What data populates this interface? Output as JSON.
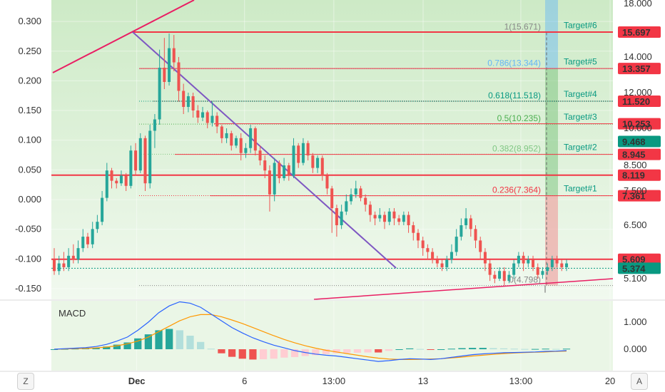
{
  "chart_data": {
    "type": "candlestick",
    "main_pane": {
      "left_axis_ticks": [
        "0.300",
        "0.250",
        "0.200",
        "0.150",
        "0.100",
        "0.050",
        "0.000",
        "-0.050",
        "-0.100",
        "-0.150"
      ],
      "right_axis_ticks": [
        "18.000",
        "14.000",
        "12.000",
        "10.000",
        "8.500",
        "7.500",
        "6.500",
        "5.100"
      ],
      "left_ylim": [
        -0.15,
        0.3
      ],
      "right_ylim": [
        4.5,
        16.5
      ],
      "fib_levels": [
        {
          "label": "1(15.671)",
          "value": 15.671,
          "color": "#888888"
        },
        {
          "label": "0.786(13.344)",
          "value": 13.344,
          "color": "#64b5f6"
        },
        {
          "label": "0.618(11.518)",
          "value": 11.518,
          "color": "#089981"
        },
        {
          "label": "0.5(10.235)",
          "value": 10.235,
          "color": "#4caf50"
        },
        {
          "label": "0.382(8.952)",
          "value": 8.952,
          "color": "#81c784"
        },
        {
          "label": "0.236(7.364)",
          "value": 7.364,
          "color": "#f23645"
        },
        {
          "label": "0(4.798)",
          "value": 4.798,
          "color": "#888888"
        }
      ],
      "targets": [
        {
          "label": "Target#6",
          "value": 15.671
        },
        {
          "label": "Target#5",
          "value": 13.344
        },
        {
          "label": "Target#4",
          "value": 11.518
        },
        {
          "label": "Target#3",
          "value": 10.235
        },
        {
          "label": "Target#2",
          "value": 8.952
        },
        {
          "label": "Target#1",
          "value": 7.364
        }
      ],
      "price_tags": [
        {
          "text": "15.697",
          "value": 15.697,
          "color": "#f23645"
        },
        {
          "text": "13.357",
          "value": 13.357,
          "color": "#f23645"
        },
        {
          "text": "11.520",
          "value": 11.52,
          "color": "#f23645"
        },
        {
          "text": "10.253",
          "value": 10.253,
          "color": "#f23645"
        },
        {
          "text": "9.468",
          "value": 9.468,
          "color": "#089981"
        },
        {
          "text": "8.945",
          "value": 8.945,
          "color": "#f23645"
        },
        {
          "text": "8.119",
          "value": 8.119,
          "color": "#f23645"
        },
        {
          "text": "7.361",
          "value": 7.361,
          "color": "#f23645"
        },
        {
          "text": "5.609",
          "value": 5.609,
          "color": "#f23645"
        },
        {
          "text": "5.374",
          "value": 5.374,
          "color": "#089981"
        }
      ],
      "horizontal_lines": [
        15.697,
        13.357,
        11.52,
        10.253,
        8.945,
        8.119,
        7.361,
        5.609,
        5.374
      ],
      "candles": [
        [
          5.6,
          5.3,
          5.9,
          5.2
        ],
        [
          5.3,
          5.5,
          5.7,
          5.2
        ],
        [
          5.5,
          5.4,
          5.8,
          5.3
        ],
        [
          5.4,
          5.7,
          5.9,
          5.3
        ],
        [
          5.7,
          5.6,
          6.0,
          5.5
        ],
        [
          5.6,
          5.9,
          6.1,
          5.5
        ],
        [
          5.9,
          6.2,
          6.4,
          5.8
        ],
        [
          6.2,
          6.0,
          6.3,
          5.9
        ],
        [
          6.0,
          6.4,
          6.6,
          5.9
        ],
        [
          6.4,
          6.6,
          6.8,
          6.3
        ],
        [
          6.6,
          7.3,
          7.5,
          6.5
        ],
        [
          7.3,
          8.3,
          8.6,
          7.2
        ],
        [
          8.3,
          7.9,
          8.4,
          7.6
        ],
        [
          7.9,
          7.8,
          8.0,
          7.6
        ],
        [
          7.8,
          8.1,
          8.3,
          7.7
        ],
        [
          8.1,
          7.7,
          8.2,
          7.5
        ],
        [
          7.7,
          9.1,
          9.3,
          7.6
        ],
        [
          9.1,
          8.3,
          9.4,
          8.1
        ],
        [
          8.3,
          9.6,
          9.8,
          8.2
        ],
        [
          9.6,
          7.8,
          9.7,
          7.5
        ],
        [
          7.8,
          9.9,
          10.2,
          7.6
        ],
        [
          9.9,
          10.5,
          10.8,
          9.2
        ],
        [
          10.5,
          13.4,
          14.5,
          10.2
        ],
        [
          13.4,
          12.6,
          15.3,
          12.2
        ],
        [
          12.6,
          14.6,
          15.6,
          12.4
        ],
        [
          14.6,
          13.7,
          15.5,
          13.2
        ],
        [
          13.7,
          12.1,
          14.0,
          11.5
        ],
        [
          12.1,
          11.2,
          12.5,
          10.8
        ],
        [
          11.2,
          11.8,
          12.0,
          10.9
        ],
        [
          11.8,
          11.0,
          12.0,
          10.6
        ],
        [
          11.0,
          10.6,
          11.3,
          10.3
        ],
        [
          10.6,
          10.9,
          11.2,
          10.4
        ],
        [
          10.9,
          10.3,
          11.0,
          10.0
        ],
        [
          10.3,
          10.7,
          11.5,
          10.1
        ],
        [
          10.7,
          10.1,
          10.9,
          9.8
        ],
        [
          10.1,
          9.6,
          10.2,
          9.4
        ],
        [
          9.6,
          9.8,
          10.0,
          9.4
        ],
        [
          9.8,
          9.3,
          9.9,
          9.1
        ],
        [
          9.3,
          9.6,
          9.7,
          9.2
        ],
        [
          9.6,
          9.0,
          9.8,
          8.7
        ],
        [
          9.0,
          9.2,
          9.4,
          8.8
        ],
        [
          9.2,
          10.0,
          10.2,
          9.0
        ],
        [
          10.0,
          9.1,
          10.1,
          8.9
        ],
        [
          9.1,
          8.7,
          9.3,
          8.5
        ],
        [
          8.7,
          8.3,
          8.9,
          8.0
        ],
        [
          8.3,
          7.4,
          8.5,
          6.9
        ],
        [
          7.4,
          8.6,
          8.8,
          7.2
        ],
        [
          8.6,
          8.0,
          8.7,
          7.8
        ],
        [
          8.0,
          8.5,
          8.8,
          7.9
        ],
        [
          8.5,
          8.1,
          8.6,
          7.9
        ],
        [
          8.1,
          9.3,
          9.6,
          8.0
        ],
        [
          9.3,
          8.6,
          9.4,
          8.4
        ],
        [
          8.6,
          9.4,
          9.6,
          8.5
        ],
        [
          9.4,
          8.9,
          9.5,
          8.7
        ],
        [
          8.9,
          8.4,
          9.0,
          8.2
        ],
        [
          8.4,
          8.8,
          8.9,
          8.2
        ],
        [
          8.8,
          8.1,
          8.9,
          7.9
        ],
        [
          8.1,
          7.6,
          8.2,
          7.4
        ],
        [
          7.6,
          7.0,
          7.7,
          6.3
        ],
        [
          7.0,
          6.5,
          7.1,
          6.2
        ],
        [
          6.5,
          6.9,
          7.1,
          6.4
        ],
        [
          6.9,
          7.2,
          7.4,
          6.8
        ],
        [
          7.2,
          7.4,
          7.6,
          7.1
        ],
        [
          7.4,
          7.6,
          7.9,
          7.3
        ],
        [
          7.6,
          7.3,
          7.7,
          7.2
        ],
        [
          7.3,
          7.1,
          7.4,
          6.9
        ],
        [
          7.1,
          6.8,
          7.2,
          6.6
        ],
        [
          6.8,
          6.7,
          6.9,
          6.5
        ],
        [
          6.7,
          6.8,
          7.0,
          6.6
        ],
        [
          6.8,
          6.6,
          6.9,
          6.4
        ],
        [
          6.6,
          6.9,
          7.0,
          6.5
        ],
        [
          6.9,
          6.7,
          7.0,
          6.5
        ],
        [
          6.7,
          6.6,
          6.8,
          6.5
        ],
        [
          6.6,
          6.8,
          6.9,
          6.5
        ],
        [
          6.8,
          6.5,
          6.9,
          6.3
        ],
        [
          6.5,
          6.3,
          6.6,
          6.1
        ],
        [
          6.3,
          6.1,
          6.4,
          5.9
        ],
        [
          6.1,
          5.9,
          6.2,
          5.7
        ],
        [
          5.9,
          5.8,
          6.0,
          5.6
        ],
        [
          5.8,
          5.6,
          5.9,
          5.5
        ],
        [
          5.6,
          5.5,
          5.7,
          5.4
        ],
        [
          5.5,
          5.4,
          5.6,
          5.3
        ],
        [
          5.4,
          5.6,
          5.7,
          5.3
        ],
        [
          5.6,
          5.8,
          6.0,
          5.5
        ],
        [
          5.8,
          6.2,
          6.4,
          5.7
        ],
        [
          6.2,
          6.5,
          6.7,
          6.1
        ],
        [
          6.5,
          6.7,
          7.0,
          6.4
        ],
        [
          6.7,
          6.4,
          6.8,
          6.2
        ],
        [
          6.4,
          6.1,
          6.5,
          5.9
        ],
        [
          6.1,
          5.8,
          6.2,
          5.6
        ],
        [
          5.8,
          5.5,
          5.9,
          5.3
        ],
        [
          5.5,
          5.2,
          5.6,
          5.0
        ],
        [
          5.2,
          5.1,
          5.3,
          4.9
        ],
        [
          5.1,
          5.3,
          5.4,
          5.0
        ],
        [
          5.3,
          5.0,
          5.4,
          4.8
        ],
        [
          5.0,
          5.2,
          5.3,
          4.9
        ],
        [
          5.2,
          5.5,
          5.6,
          5.1
        ],
        [
          5.5,
          5.7,
          5.8,
          5.4
        ],
        [
          5.7,
          5.5,
          5.8,
          5.3
        ],
        [
          5.5,
          5.6,
          5.7,
          5.4
        ],
        [
          5.6,
          5.4,
          5.7,
          5.3
        ],
        [
          5.4,
          5.2,
          5.5,
          5.1
        ],
        [
          5.2,
          5.3,
          5.4,
          5.1
        ],
        [
          5.3,
          5.4,
          5.5,
          5.2
        ],
        [
          5.4,
          5.6,
          5.7,
          5.3
        ],
        [
          5.6,
          5.5,
          5.7,
          5.4
        ],
        [
          5.5,
          5.4,
          5.6,
          5.3
        ],
        [
          5.4,
          5.5,
          5.6,
          5.3
        ]
      ]
    },
    "macd_pane": {
      "title": "MACD",
      "right_axis_ticks": [
        "1.000",
        "0.000"
      ],
      "ylim": [
        -0.7,
        2.0
      ],
      "macd_line": [
        0,
        0.02,
        0.04,
        0.06,
        0.1,
        0.18,
        0.3,
        0.45,
        0.7,
        1.0,
        1.35,
        1.6,
        1.75,
        1.7,
        1.55,
        1.3,
        1.05,
        0.8,
        0.6,
        0.42,
        0.28,
        0.15,
        0.05,
        -0.05,
        -0.12,
        -0.18,
        -0.22,
        -0.25,
        -0.3,
        -0.35,
        -0.4,
        -0.45,
        -0.42,
        -0.38,
        -0.35,
        -0.36,
        -0.38,
        -0.35,
        -0.3,
        -0.25,
        -0.2,
        -0.17,
        -0.15,
        -0.13,
        -0.12,
        -0.11,
        -0.1,
        -0.08,
        -0.07,
        -0.05
      ],
      "signal_line": [
        0,
        0.01,
        0.02,
        0.03,
        0.05,
        0.08,
        0.13,
        0.2,
        0.3,
        0.45,
        0.65,
        0.85,
        1.05,
        1.2,
        1.28,
        1.28,
        1.2,
        1.08,
        0.95,
        0.8,
        0.65,
        0.5,
        0.36,
        0.24,
        0.13,
        0.04,
        -0.04,
        -0.1,
        -0.16,
        -0.22,
        -0.28,
        -0.33,
        -0.36,
        -0.38,
        -0.38,
        -0.37,
        -0.36,
        -0.35,
        -0.32,
        -0.29,
        -0.25,
        -0.22,
        -0.19,
        -0.16,
        -0.14,
        -0.12,
        -0.11,
        -0.1,
        -0.08,
        -0.07
      ],
      "histogram": [
        0,
        0.01,
        0.02,
        0.03,
        0.05,
        0.1,
        0.17,
        0.25,
        0.4,
        0.55,
        0.7,
        0.75,
        0.7,
        0.5,
        0.27,
        0.02,
        -0.15,
        -0.28,
        -0.35,
        -0.38,
        -0.37,
        -0.35,
        -0.31,
        -0.29,
        -0.25,
        -0.22,
        -0.18,
        -0.15,
        -0.14,
        -0.13,
        -0.12,
        -0.12,
        -0.06,
        0.0,
        0.03,
        0.01,
        -0.02,
        0.0,
        0.02,
        0.04,
        0.05,
        0.05,
        0.04,
        0.03,
        0.02,
        0.01,
        0.01,
        0.02,
        0.01,
        0.02
      ]
    },
    "x_axis_ticks": [
      {
        "label": "Dec",
        "pos": 0.152,
        "bold": true
      },
      {
        "label": "6",
        "pos": 0.344,
        "bold": false
      },
      {
        "label": "13:00",
        "pos": 0.503,
        "bold": false
      },
      {
        "label": "13",
        "pos": 0.662,
        "bold": false
      },
      {
        "label": "13:00",
        "pos": 0.836,
        "bold": false
      },
      {
        "label": "20",
        "pos": 0.995,
        "bold": false
      }
    ],
    "grid": true,
    "colors": {
      "up": "#26a69a",
      "down": "#ef5350",
      "fib_red": "#f23645",
      "purple_trendline": "#7e57c2",
      "pink_trendline": "#e91e63",
      "macd": "#2962ff",
      "signal": "#ff9800",
      "background_top": "#d4efd0",
      "background_bottom": "#f0f8ee"
    }
  },
  "bottom_bar": {
    "left_button": "Z",
    "right_button": "A"
  }
}
